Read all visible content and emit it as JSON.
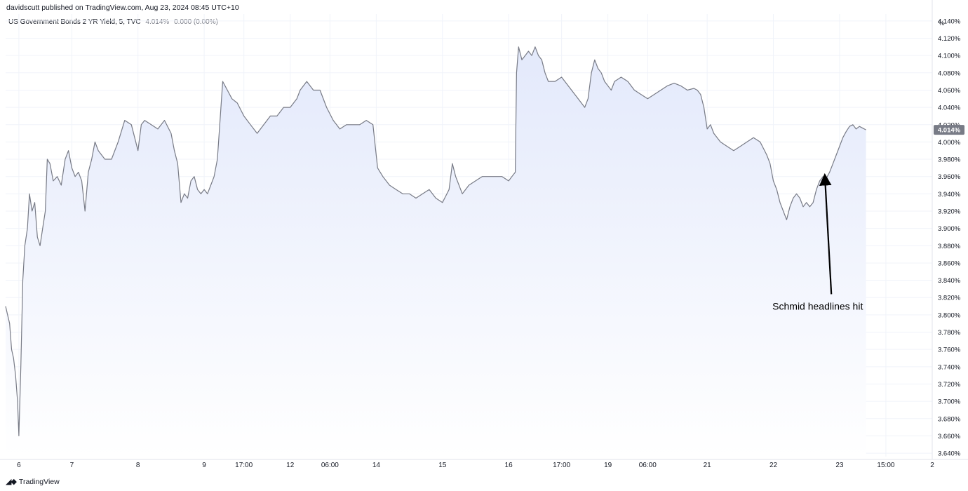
{
  "header": {
    "publisher": "davidscutt published on TradingView.com, Aug 23, 2024 08:45 UTC+10"
  },
  "legend": {
    "symbol": "US Government Bonds 2 YR Yield, 5, TVC",
    "last": "4.014%",
    "change": "0.000 (0.00%)"
  },
  "y_axis_unit": "%",
  "last_label": "4.014%",
  "footer": {
    "logo_text": "TradingView"
  },
  "colors": {
    "line": "#787b86",
    "fill_top": "#e3e9fb",
    "grid": "#f0f3fa",
    "annotation": "#000000",
    "last_badge": "#787b86"
  },
  "chart_data": {
    "type": "area",
    "ylim": [
      3.636,
      4.148
    ],
    "ytick_values": [
      3.64,
      3.66,
      3.68,
      3.7,
      3.72,
      3.74,
      3.76,
      3.78,
      3.8,
      3.82,
      3.84,
      3.86,
      3.88,
      3.9,
      3.92,
      3.94,
      3.96,
      3.98,
      4.0,
      4.02,
      4.04,
      4.06,
      4.08,
      4.1,
      4.12,
      4.14
    ],
    "ytick_labels": [
      "3.640%",
      "3.660%",
      "3.680%",
      "3.700%",
      "3.720%",
      "3.740%",
      "3.760%",
      "3.780%",
      "3.800%",
      "3.820%",
      "3.840%",
      "3.860%",
      "3.880%",
      "3.900%",
      "3.920%",
      "3.940%",
      "3.960%",
      "3.980%",
      "4.000%",
      "4.020%",
      "4.040%",
      "4.060%",
      "4.080%",
      "4.100%",
      "4.120%",
      "4.140%"
    ],
    "xticks": [
      {
        "label": "6",
        "pos": 0.2
      },
      {
        "label": "7",
        "pos": 1.0
      },
      {
        "label": "8",
        "pos": 2.0
      },
      {
        "label": "9",
        "pos": 3.0
      },
      {
        "label": "17:00",
        "pos": 3.6
      },
      {
        "label": "12",
        "pos": 4.3
      },
      {
        "label": "06:00",
        "pos": 4.9
      },
      {
        "label": "14",
        "pos": 5.6
      },
      {
        "label": "15",
        "pos": 6.6
      },
      {
        "label": "16",
        "pos": 7.6
      },
      {
        "label": "17:00",
        "pos": 8.4
      },
      {
        "label": "19",
        "pos": 9.1
      },
      {
        "label": "06:00",
        "pos": 9.7
      },
      {
        "label": "21",
        "pos": 10.6
      },
      {
        "label": "22",
        "pos": 11.6
      },
      {
        "label": "23",
        "pos": 12.6
      },
      {
        "label": "15:00",
        "pos": 13.3
      },
      {
        "label": "2",
        "pos": 14.0
      }
    ],
    "xlim": [
      0,
      14.0
    ],
    "series": [
      {
        "values": [
          [
            0.0,
            3.81
          ],
          [
            0.03,
            3.8
          ],
          [
            0.06,
            3.79
          ],
          [
            0.09,
            3.76
          ],
          [
            0.12,
            3.75
          ],
          [
            0.15,
            3.73
          ],
          [
            0.18,
            3.7
          ],
          [
            0.2,
            3.66
          ],
          [
            0.23,
            3.74
          ],
          [
            0.26,
            3.84
          ],
          [
            0.29,
            3.88
          ],
          [
            0.33,
            3.9
          ],
          [
            0.36,
            3.94
          ],
          [
            0.4,
            3.92
          ],
          [
            0.44,
            3.93
          ],
          [
            0.48,
            3.89
          ],
          [
            0.52,
            3.88
          ],
          [
            0.56,
            3.9
          ],
          [
            0.6,
            3.92
          ],
          [
            0.63,
            3.98
          ],
          [
            0.67,
            3.975
          ],
          [
            0.72,
            3.955
          ],
          [
            0.78,
            3.96
          ],
          [
            0.84,
            3.95
          ],
          [
            0.9,
            3.98
          ],
          [
            0.95,
            3.99
          ],
          [
            1.0,
            3.97
          ],
          [
            1.05,
            3.96
          ],
          [
            1.1,
            3.965
          ],
          [
            1.15,
            3.955
          ],
          [
            1.2,
            3.92
          ],
          [
            1.25,
            3.965
          ],
          [
            1.3,
            3.98
          ],
          [
            1.35,
            4.0
          ],
          [
            1.4,
            3.99
          ],
          [
            1.5,
            3.98
          ],
          [
            1.6,
            3.98
          ],
          [
            1.7,
            4.0
          ],
          [
            1.8,
            4.025
          ],
          [
            1.9,
            4.02
          ],
          [
            2.0,
            3.99
          ],
          [
            2.05,
            4.02
          ],
          [
            2.1,
            4.025
          ],
          [
            2.2,
            4.02
          ],
          [
            2.3,
            4.015
          ],
          [
            2.4,
            4.025
          ],
          [
            2.5,
            4.01
          ],
          [
            2.55,
            3.99
          ],
          [
            2.6,
            3.975
          ],
          [
            2.65,
            3.93
          ],
          [
            2.7,
            3.94
          ],
          [
            2.75,
            3.935
          ],
          [
            2.8,
            3.955
          ],
          [
            2.85,
            3.96
          ],
          [
            2.9,
            3.945
          ],
          [
            2.95,
            3.94
          ],
          [
            3.0,
            3.945
          ],
          [
            3.05,
            3.94
          ],
          [
            3.1,
            3.95
          ],
          [
            3.15,
            3.96
          ],
          [
            3.2,
            3.98
          ],
          [
            3.28,
            4.07
          ],
          [
            3.35,
            4.06
          ],
          [
            3.42,
            4.05
          ],
          [
            3.5,
            4.045
          ],
          [
            3.6,
            4.03
          ],
          [
            3.7,
            4.02
          ],
          [
            3.8,
            4.01
          ],
          [
            3.9,
            4.02
          ],
          [
            4.0,
            4.03
          ],
          [
            4.1,
            4.03
          ],
          [
            4.2,
            4.04
          ],
          [
            4.3,
            4.04
          ],
          [
            4.4,
            4.05
          ],
          [
            4.45,
            4.06
          ],
          [
            4.55,
            4.07
          ],
          [
            4.65,
            4.06
          ],
          [
            4.75,
            4.06
          ],
          [
            4.85,
            4.04
          ],
          [
            4.95,
            4.025
          ],
          [
            5.05,
            4.015
          ],
          [
            5.15,
            4.02
          ],
          [
            5.25,
            4.02
          ],
          [
            5.35,
            4.02
          ],
          [
            5.45,
            4.025
          ],
          [
            5.55,
            4.02
          ],
          [
            5.62,
            3.97
          ],
          [
            5.7,
            3.96
          ],
          [
            5.8,
            3.95
          ],
          [
            5.9,
            3.945
          ],
          [
            6.0,
            3.94
          ],
          [
            6.1,
            3.94
          ],
          [
            6.2,
            3.935
          ],
          [
            6.3,
            3.94
          ],
          [
            6.4,
            3.945
          ],
          [
            6.5,
            3.935
          ],
          [
            6.6,
            3.93
          ],
          [
            6.7,
            3.945
          ],
          [
            6.75,
            3.975
          ],
          [
            6.8,
            3.96
          ],
          [
            6.9,
            3.94
          ],
          [
            7.0,
            3.95
          ],
          [
            7.1,
            3.955
          ],
          [
            7.2,
            3.96
          ],
          [
            7.3,
            3.96
          ],
          [
            7.4,
            3.96
          ],
          [
            7.5,
            3.96
          ],
          [
            7.6,
            3.955
          ],
          [
            7.65,
            3.96
          ],
          [
            7.7,
            3.965
          ],
          [
            7.72,
            4.08
          ],
          [
            7.75,
            4.11
          ],
          [
            7.8,
            4.095
          ],
          [
            7.85,
            4.1
          ],
          [
            7.9,
            4.105
          ],
          [
            7.95,
            4.1
          ],
          [
            8.0,
            4.11
          ],
          [
            8.05,
            4.1
          ],
          [
            8.1,
            4.095
          ],
          [
            8.15,
            4.08
          ],
          [
            8.2,
            4.07
          ],
          [
            8.3,
            4.07
          ],
          [
            8.4,
            4.075
          ],
          [
            8.5,
            4.065
          ],
          [
            8.6,
            4.055
          ],
          [
            8.7,
            4.045
          ],
          [
            8.75,
            4.04
          ],
          [
            8.8,
            4.05
          ],
          [
            8.85,
            4.08
          ],
          [
            8.9,
            4.095
          ],
          [
            8.95,
            4.085
          ],
          [
            9.0,
            4.08
          ],
          [
            9.05,
            4.07
          ],
          [
            9.1,
            4.065
          ],
          [
            9.15,
            4.06
          ],
          [
            9.2,
            4.07
          ],
          [
            9.3,
            4.075
          ],
          [
            9.4,
            4.07
          ],
          [
            9.5,
            4.06
          ],
          [
            9.6,
            4.055
          ],
          [
            9.7,
            4.05
          ],
          [
            9.8,
            4.055
          ],
          [
            9.9,
            4.06
          ],
          [
            10.0,
            4.065
          ],
          [
            10.1,
            4.068
          ],
          [
            10.2,
            4.065
          ],
          [
            10.3,
            4.06
          ],
          [
            10.4,
            4.062
          ],
          [
            10.45,
            4.06
          ],
          [
            10.5,
            4.055
          ],
          [
            10.55,
            4.04
          ],
          [
            10.6,
            4.015
          ],
          [
            10.65,
            4.02
          ],
          [
            10.7,
            4.01
          ],
          [
            10.8,
            4.0
          ],
          [
            10.9,
            3.995
          ],
          [
            11.0,
            3.99
          ],
          [
            11.1,
            3.995
          ],
          [
            11.2,
            4.0
          ],
          [
            11.3,
            4.005
          ],
          [
            11.4,
            4.0
          ],
          [
            11.5,
            3.985
          ],
          [
            11.55,
            3.975
          ],
          [
            11.6,
            3.955
          ],
          [
            11.65,
            3.945
          ],
          [
            11.7,
            3.93
          ],
          [
            11.75,
            3.92
          ],
          [
            11.8,
            3.91
          ],
          [
            11.85,
            3.925
          ],
          [
            11.9,
            3.935
          ],
          [
            11.95,
            3.94
          ],
          [
            12.0,
            3.935
          ],
          [
            12.05,
            3.925
          ],
          [
            12.1,
            3.93
          ],
          [
            12.15,
            3.925
          ],
          [
            12.2,
            3.93
          ],
          [
            12.25,
            3.945
          ],
          [
            12.3,
            3.955
          ],
          [
            12.35,
            3.96
          ],
          [
            12.4,
            3.958
          ],
          [
            12.45,
            3.965
          ],
          [
            12.5,
            3.975
          ],
          [
            12.55,
            3.985
          ],
          [
            12.6,
            3.995
          ],
          [
            12.65,
            4.005
          ],
          [
            12.7,
            4.012
          ],
          [
            12.75,
            4.018
          ],
          [
            12.8,
            4.02
          ],
          [
            12.85,
            4.015
          ],
          [
            12.9,
            4.018
          ],
          [
            12.95,
            4.016
          ],
          [
            13.0,
            4.014
          ]
        ]
      }
    ],
    "annotations": [
      {
        "text": "Schmid headlines hit",
        "x": 12.27,
        "y": 3.806,
        "arrow_to": [
          12.37,
          3.96
        ]
      }
    ]
  }
}
